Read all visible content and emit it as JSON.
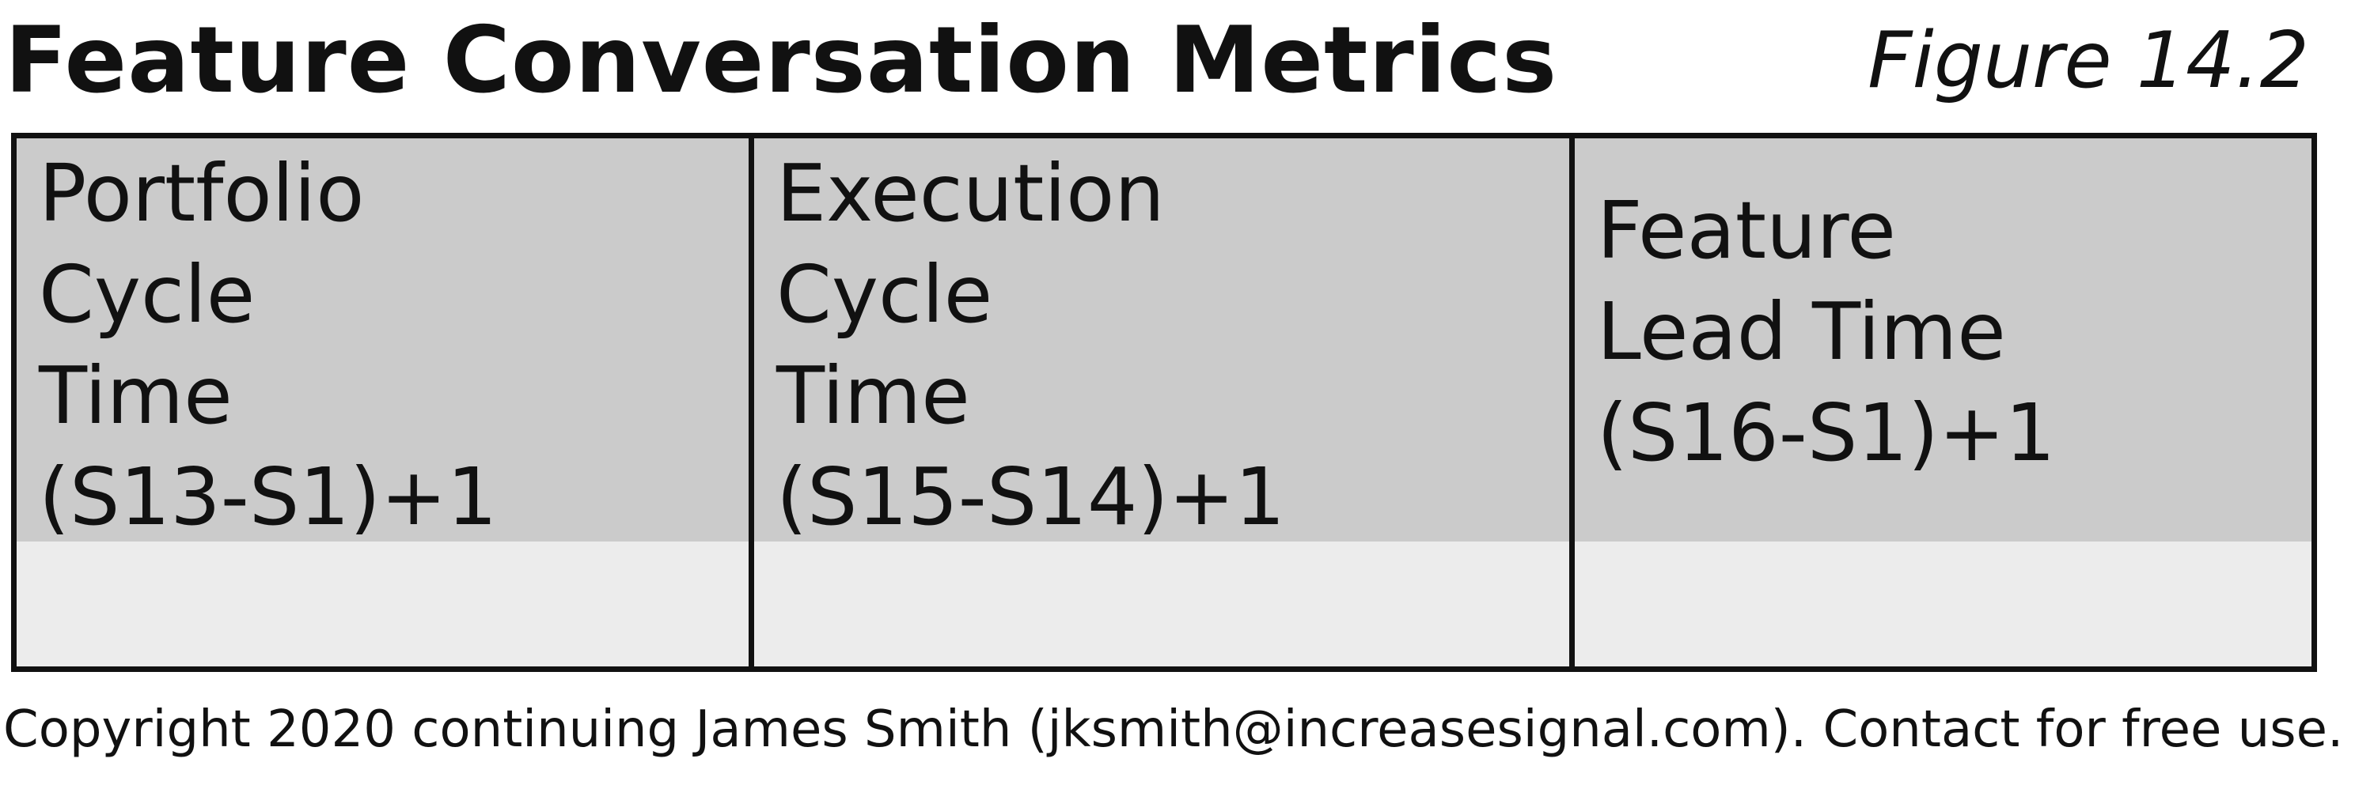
{
  "header": {
    "title": "Feature Conversation Metrics",
    "figure_label": "Figure 14.2"
  },
  "metrics": [
    {
      "lines": [
        "Portfolio",
        "Cycle",
        "Time",
        "(S13-S1)+1"
      ],
      "value": ""
    },
    {
      "lines": [
        "Execution",
        "Cycle",
        "Time",
        "(S15-S14)+1"
      ],
      "value": ""
    },
    {
      "lines": [
        "Feature",
        "Lead Time",
        "(S16-S1)+1"
      ],
      "value": ""
    }
  ],
  "footer": {
    "copyright": "Copyright 2020 continuing James Smith (jksmith@increasesignal.com). Contact for free use."
  },
  "colors": {
    "header_cell": "#cbcbcb",
    "value_cell": "#ececec",
    "border": "#111111"
  }
}
